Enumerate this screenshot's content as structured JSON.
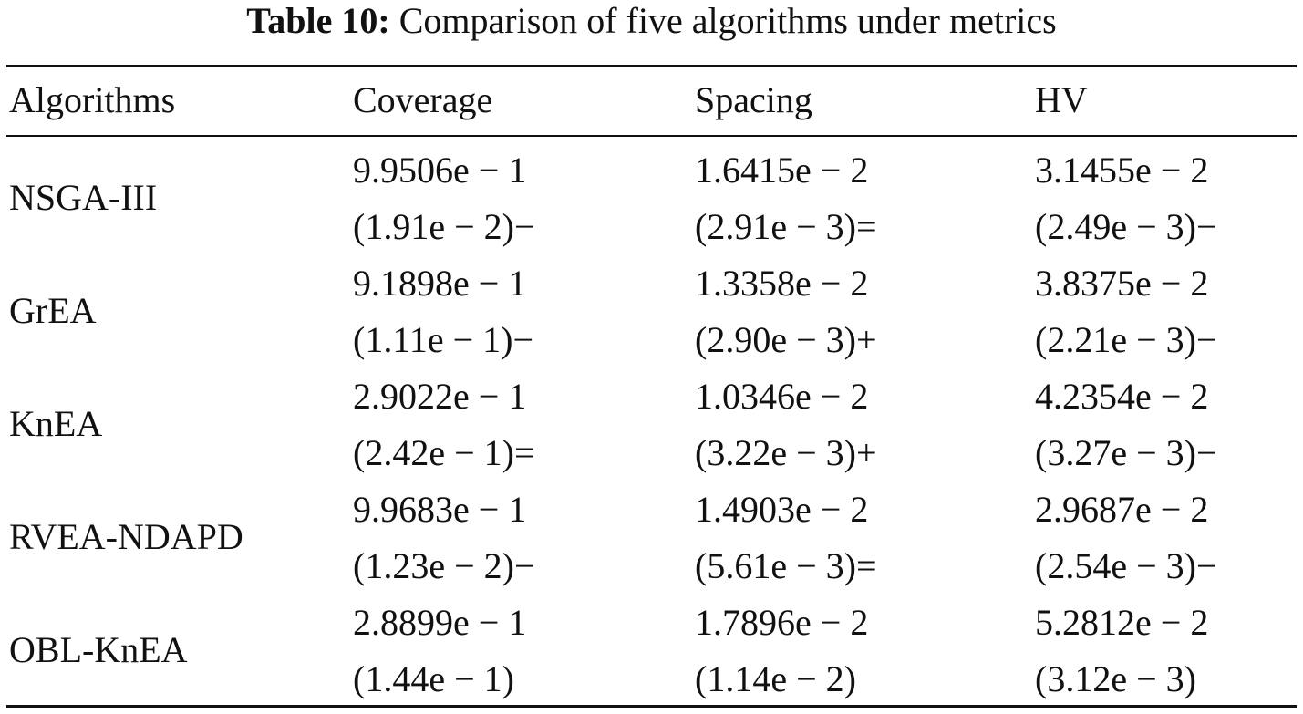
{
  "caption": {
    "label": "Table 10:",
    "text": "Comparison of five algorithms under metrics"
  },
  "table": {
    "headers": [
      "Algorithms",
      "Coverage",
      "Spacing",
      "HV"
    ],
    "rows": [
      {
        "algorithm": "NSGA-III",
        "coverage": {
          "mean": "9.9506e − 1",
          "std": "(1.91e − 2)−"
        },
        "spacing": {
          "mean": "1.6415e − 2",
          "std": "(2.91e − 3)="
        },
        "hv": {
          "mean": "3.1455e − 2",
          "std": "(2.49e − 3)−"
        }
      },
      {
        "algorithm": "GrEA",
        "coverage": {
          "mean": "9.1898e − 1",
          "std": "(1.11e − 1)−"
        },
        "spacing": {
          "mean": "1.3358e − 2",
          "std": "(2.90e − 3)+"
        },
        "hv": {
          "mean": "3.8375e − 2",
          "std": "(2.21e − 3)−"
        }
      },
      {
        "algorithm": "KnEA",
        "coverage": {
          "mean": "2.9022e − 1",
          "std": "(2.42e − 1)="
        },
        "spacing": {
          "mean": "1.0346e − 2",
          "std": "(3.22e − 3)+"
        },
        "hv": {
          "mean": "4.2354e − 2",
          "std": "(3.27e − 3)−"
        }
      },
      {
        "algorithm": "RVEA-NDAPD",
        "coverage": {
          "mean": "9.9683e − 1",
          "std": "(1.23e − 2)−"
        },
        "spacing": {
          "mean": "1.4903e − 2",
          "std": "(5.61e − 3)="
        },
        "hv": {
          "mean": "2.9687e − 2",
          "std": "(2.54e − 3)−"
        }
      },
      {
        "algorithm": "OBL-KnEA",
        "coverage": {
          "mean": "2.8899e − 1",
          "std": "(1.44e − 1)"
        },
        "spacing": {
          "mean": "1.7896e − 2",
          "std": "(1.14e − 2)"
        },
        "hv": {
          "mean": "5.2812e − 2",
          "std": "(3.12e − 3)"
        }
      }
    ]
  }
}
